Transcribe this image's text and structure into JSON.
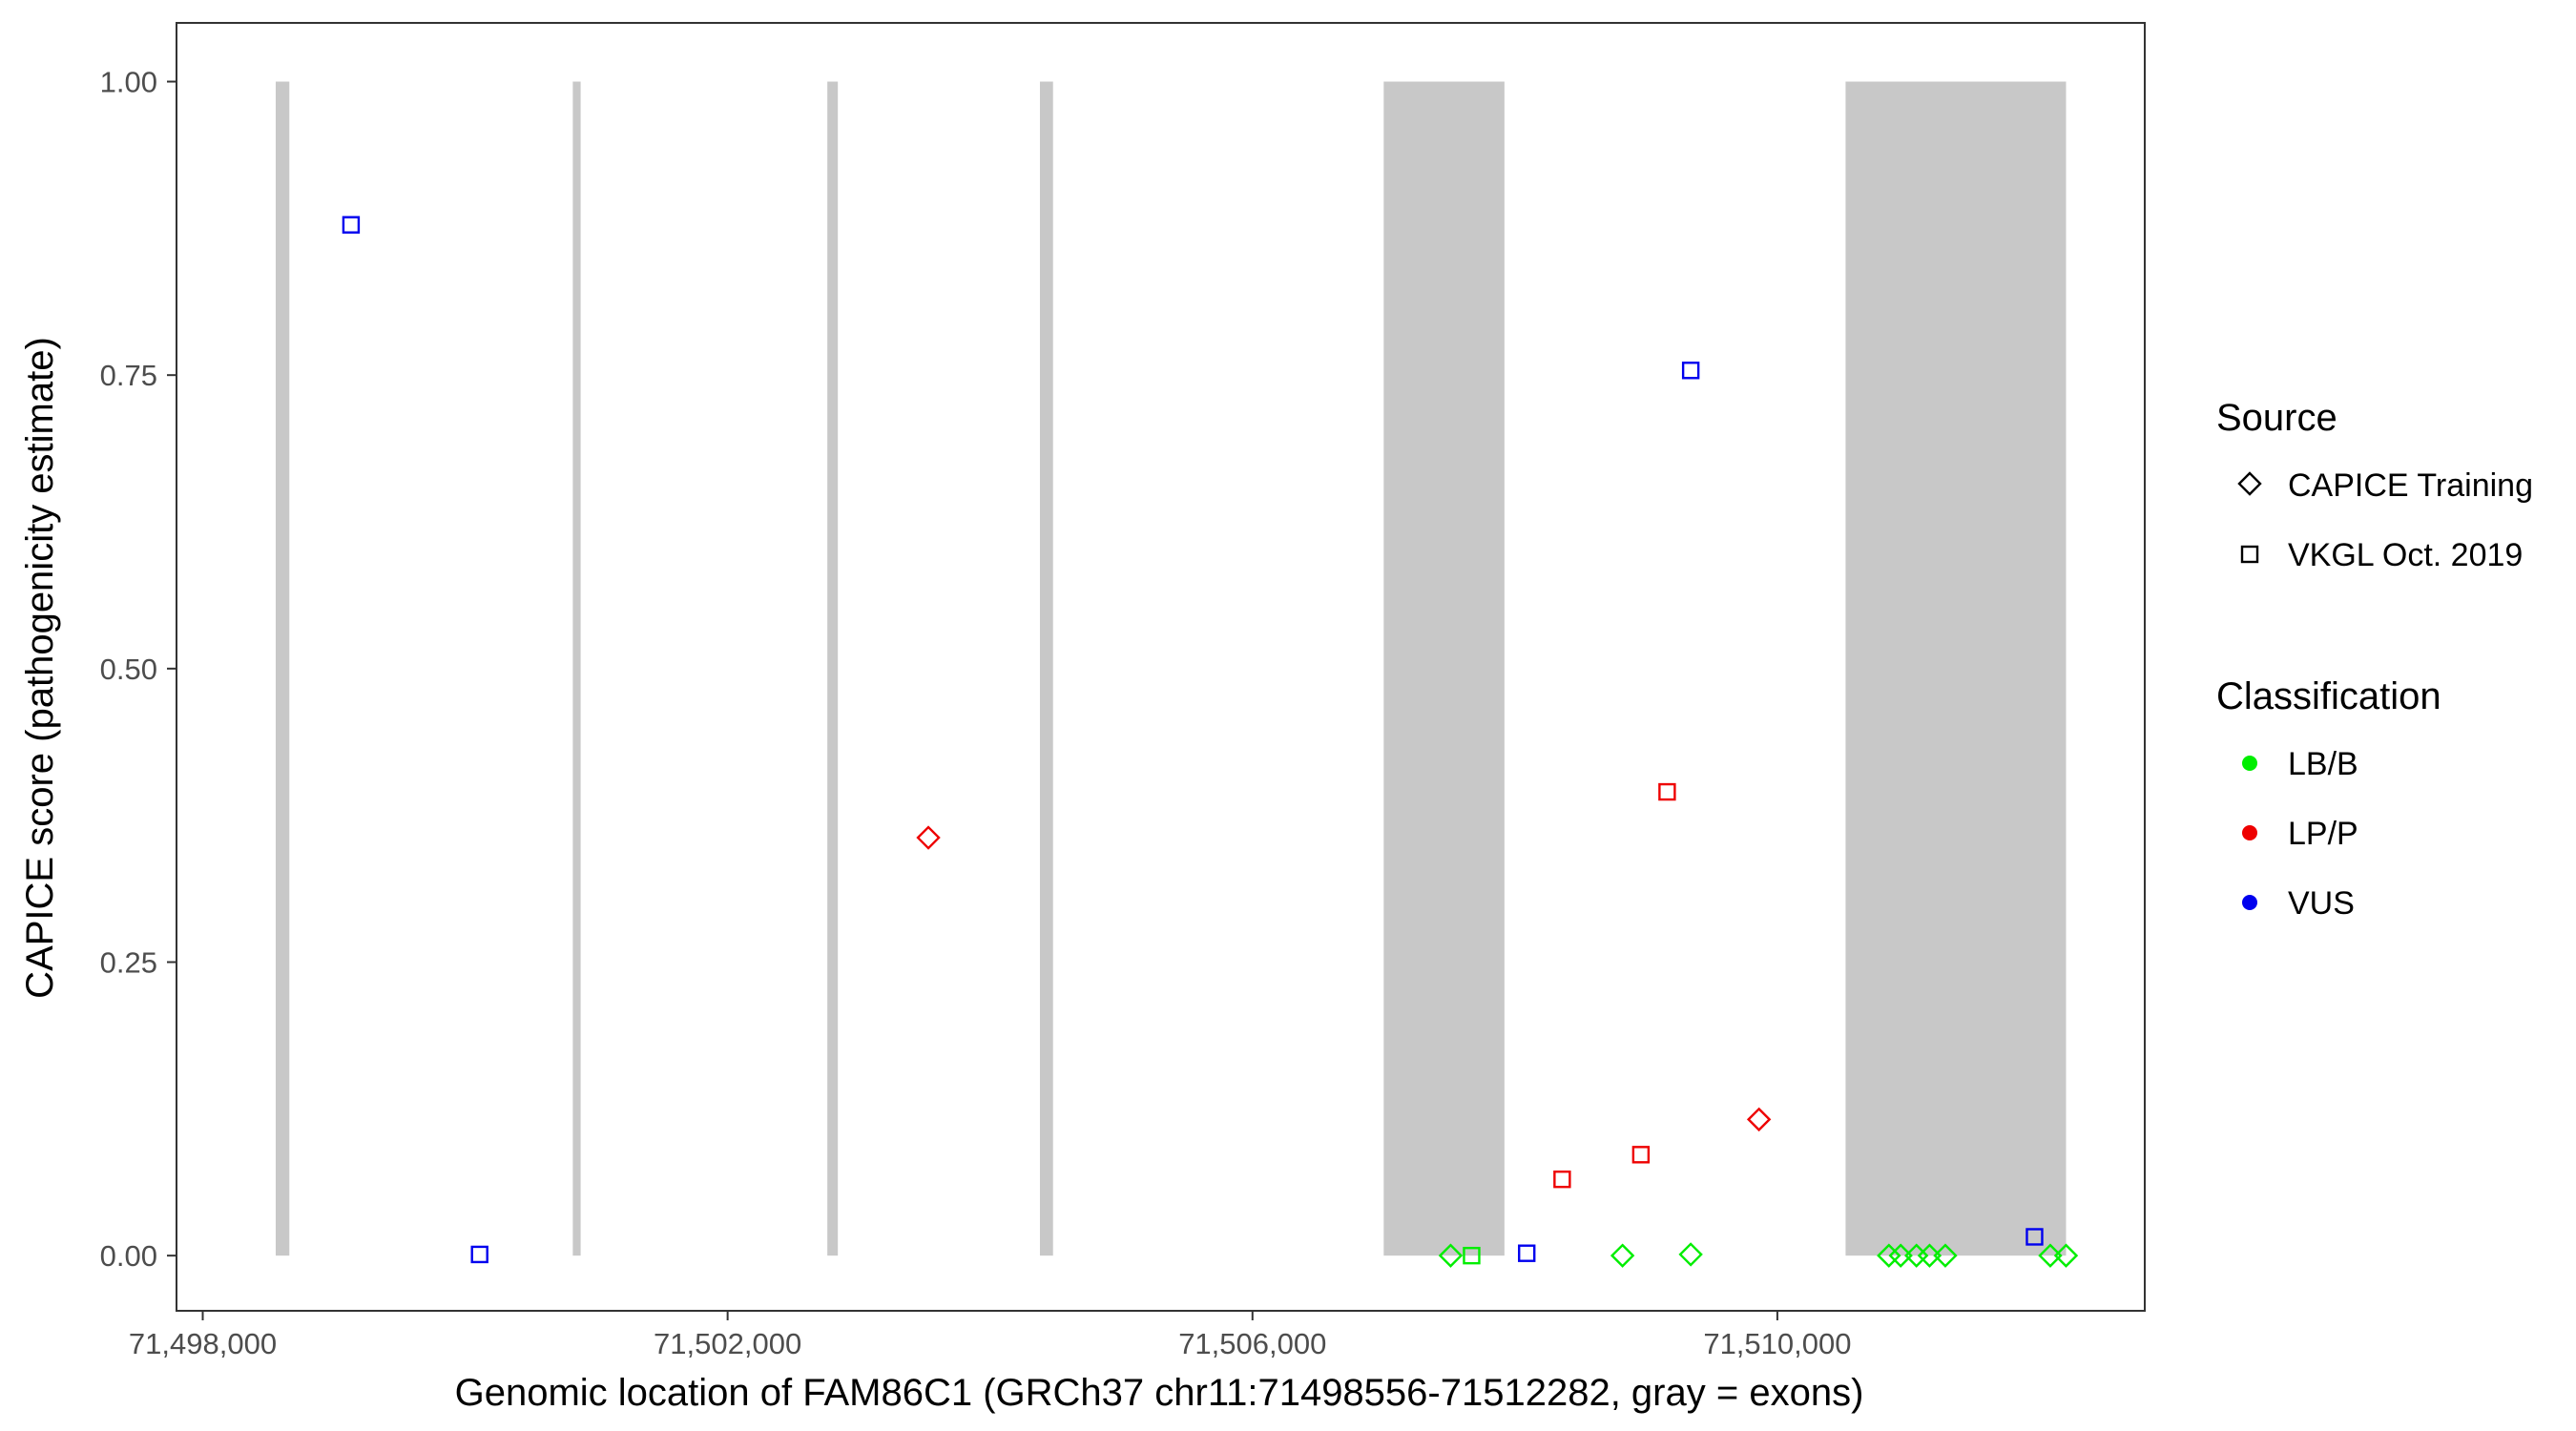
{
  "chart_data": {
    "type": "scatter",
    "title": "",
    "xlabel": "Genomic location of FAM86C1 (GRCh37 chr11:71498556-71512282, gray = exons)",
    "ylabel": "CAPICE score (pathogenicity estimate)",
    "xlim": [
      71497800,
      71512800
    ],
    "ylim": [
      -0.047,
      1.05
    ],
    "x_ticks": [
      71498000,
      71502000,
      71506000,
      71510000
    ],
    "x_tick_labels": [
      "71,498,000",
      "71,502,000",
      "71,506,000",
      "71,510,000"
    ],
    "y_ticks": [
      0,
      0.25,
      0.5,
      0.75,
      1.0
    ],
    "y_tick_labels": [
      "0.00",
      "0.25",
      "0.50",
      "0.75",
      "1.00"
    ],
    "grid": false,
    "exon_color": "#c8c8c8",
    "exons": [
      [
        71498556,
        71498660
      ],
      [
        71500820,
        71500880
      ],
      [
        71502760,
        71502840
      ],
      [
        71504380,
        71504480
      ],
      [
        71507000,
        71507920
      ],
      [
        71510520,
        71512200
      ]
    ],
    "legend": {
      "placement": "right",
      "source": {
        "title": "Source",
        "items": [
          {
            "label": "CAPICE Training",
            "shape": "diamond"
          },
          {
            "label": "VKGL Oct. 2019",
            "shape": "square"
          }
        ]
      },
      "classification": {
        "title": "Classification",
        "items": [
          {
            "label": "LB/B",
            "color": "#00ee00"
          },
          {
            "label": "LP/P",
            "color": "#ee0000"
          },
          {
            "label": "VUS",
            "color": "#0000ee"
          }
        ]
      }
    },
    "points": [
      {
        "x": 71499130,
        "y": 0.878,
        "source": "VKGL Oct. 2019",
        "classification": "VUS"
      },
      {
        "x": 71500110,
        "y": 0.001,
        "source": "VKGL Oct. 2019",
        "classification": "VUS"
      },
      {
        "x": 71503530,
        "y": 0.356,
        "source": "CAPICE Training",
        "classification": "LP/P"
      },
      {
        "x": 71507510,
        "y": 0.0,
        "source": "CAPICE Training",
        "classification": "LB/B"
      },
      {
        "x": 71507670,
        "y": 0.0,
        "source": "VKGL Oct. 2019",
        "classification": "LB/B"
      },
      {
        "x": 71508090,
        "y": 0.002,
        "source": "VKGL Oct. 2019",
        "classification": "VUS"
      },
      {
        "x": 71508360,
        "y": 0.065,
        "source": "VKGL Oct. 2019",
        "classification": "LP/P"
      },
      {
        "x": 71508820,
        "y": 0.0,
        "source": "CAPICE Training",
        "classification": "LB/B"
      },
      {
        "x": 71508960,
        "y": 0.086,
        "source": "VKGL Oct. 2019",
        "classification": "LP/P"
      },
      {
        "x": 71509160,
        "y": 0.395,
        "source": "VKGL Oct. 2019",
        "classification": "LP/P"
      },
      {
        "x": 71509340,
        "y": 0.754,
        "source": "VKGL Oct. 2019",
        "classification": "VUS"
      },
      {
        "x": 71509340,
        "y": 0.001,
        "source": "CAPICE Training",
        "classification": "LB/B"
      },
      {
        "x": 71509860,
        "y": 0.116,
        "source": "CAPICE Training",
        "classification": "LP/P"
      },
      {
        "x": 71510850,
        "y": 0.0,
        "source": "CAPICE Training",
        "classification": "LB/B"
      },
      {
        "x": 71510940,
        "y": 0.0,
        "source": "CAPICE Training",
        "classification": "LB/B"
      },
      {
        "x": 71511060,
        "y": 0.0,
        "source": "CAPICE Training",
        "classification": "LB/B"
      },
      {
        "x": 71511160,
        "y": 0.0,
        "source": "CAPICE Training",
        "classification": "LB/B"
      },
      {
        "x": 71511280,
        "y": 0.0,
        "source": "CAPICE Training",
        "classification": "LB/B"
      },
      {
        "x": 71511960,
        "y": 0.016,
        "source": "VKGL Oct. 2019",
        "classification": "VUS"
      },
      {
        "x": 71512080,
        "y": 0.0,
        "source": "CAPICE Training",
        "classification": "LB/B"
      },
      {
        "x": 71512200,
        "y": 0.0,
        "source": "CAPICE Training",
        "classification": "LB/B"
      }
    ]
  }
}
